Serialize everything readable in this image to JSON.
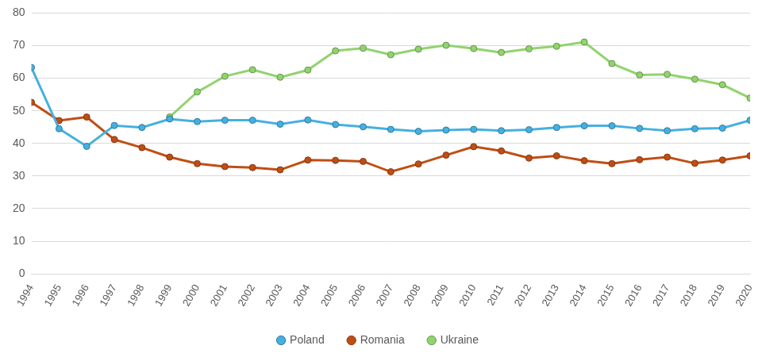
{
  "chart_data": {
    "type": "line",
    "categories": [
      "1994",
      "1995",
      "1996",
      "1997",
      "1998",
      "1999",
      "2000",
      "2001",
      "2002",
      "2003",
      "2004",
      "2005",
      "2006",
      "2007",
      "2008",
      "2009",
      "2010",
      "2011",
      "2012",
      "2013",
      "2014",
      "2015",
      "2016",
      "2017",
      "2018",
      "2019",
      "2020"
    ],
    "series": [
      {
        "name": "Poland",
        "color": "#45b0e1",
        "values": [
          63.3,
          44.5,
          39.1,
          45.5,
          44.9,
          47.5,
          46.7,
          47.1,
          47.1,
          45.9,
          47.2,
          45.8,
          45.1,
          44.3,
          43.7,
          44.1,
          44.3,
          43.9,
          44.2,
          44.9,
          45.4,
          45.4,
          44.6,
          43.9,
          44.5,
          44.7,
          47.1
        ]
      },
      {
        "name": "Romania",
        "color": "#bf4e14",
        "values": [
          52.6,
          47.0,
          48.1,
          41.2,
          38.7,
          35.8,
          33.8,
          32.9,
          32.6,
          31.9,
          34.9,
          34.8,
          34.5,
          31.3,
          33.7,
          36.4,
          39.0,
          37.7,
          35.5,
          36.2,
          34.7,
          33.8,
          35.0,
          35.8,
          33.9,
          34.9,
          36.2
        ]
      },
      {
        "name": "Ukraine",
        "color": "#92d36e",
        "values": [
          null,
          null,
          null,
          null,
          null,
          48.1,
          55.8,
          60.6,
          62.6,
          60.3,
          62.5,
          68.4,
          69.2,
          67.2,
          68.9,
          70.1,
          69.1,
          67.9,
          69.0,
          69.8,
          71.1,
          64.5,
          61.0,
          61.2,
          59.7,
          58.0,
          53.9
        ]
      }
    ],
    "ylim": [
      0,
      80
    ],
    "yticks": [
      0,
      10,
      20,
      30,
      40,
      50,
      60,
      70,
      80
    ],
    "grid": true,
    "legend": "bottom",
    "marker": "circle"
  }
}
